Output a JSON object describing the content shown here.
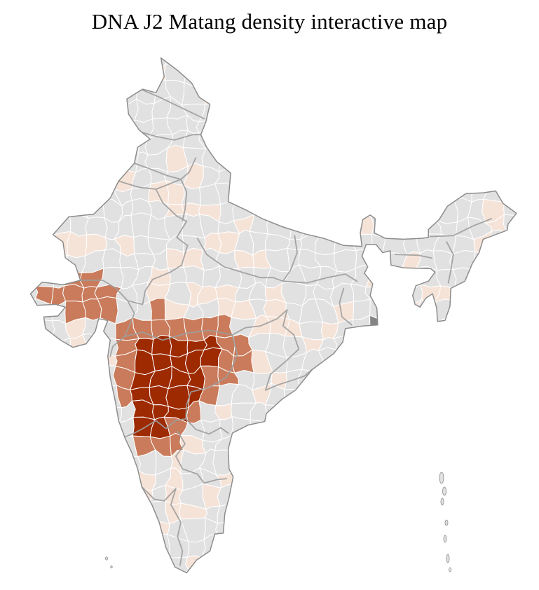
{
  "title": "DNA J2 Matang density interactive map",
  "map": {
    "country": "India",
    "palette": {
      "background": "#ffffff",
      "district_none": "#e1e1e1",
      "district_low": "#f6e3d8",
      "district_medium": "#c97b5b",
      "district_high": "#9d2a00",
      "district_dark_gray": "#848484",
      "district_border": "#ffffff",
      "state_border": "#9e9e9e",
      "coast_border": "#8d8d8d"
    }
  }
}
